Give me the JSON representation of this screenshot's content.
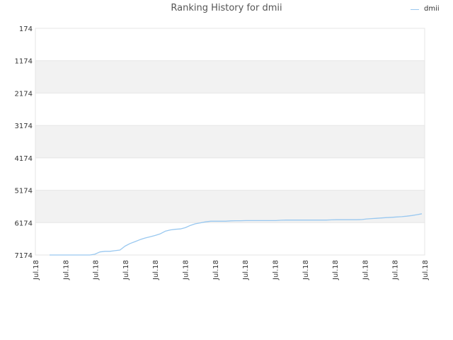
{
  "chart_data": {
    "type": "line",
    "title": "Ranking History for dmii",
    "xlabel": "",
    "ylabel": "",
    "ylim": [
      174,
      7174
    ],
    "y_inverted": true,
    "y_ticks": [
      "174",
      "1174",
      "2174",
      "3174",
      "4174",
      "5174",
      "6174",
      "7174"
    ],
    "x_ticks": [
      "Jul.18",
      "Jul.18",
      "Jul.18",
      "Jul.18",
      "Jul.18",
      "Jul.18",
      "Jul.18",
      "Jul.18",
      "Jul.18",
      "Jul.18",
      "Jul.18",
      "Jul.18",
      "Jul.18",
      "Jul.18"
    ],
    "grid": true,
    "legend_position": "top-right",
    "series": [
      {
        "name": "dmii",
        "color": "#99c8f0",
        "values": [
          7174,
          7174,
          7174,
          7174,
          7174,
          7174,
          7174,
          7174,
          7174,
          7150,
          7080,
          7060,
          7060,
          7040,
          7020,
          6900,
          6820,
          6760,
          6700,
          6650,
          6610,
          6570,
          6520,
          6440,
          6400,
          6380,
          6370,
          6330,
          6260,
          6210,
          6180,
          6150,
          6130,
          6130,
          6130,
          6130,
          6120,
          6115,
          6115,
          6110,
          6110,
          6110,
          6110,
          6110,
          6110,
          6110,
          6100,
          6095,
          6095,
          6095,
          6095,
          6095,
          6095,
          6095,
          6095,
          6095,
          6090,
          6085,
          6085,
          6085,
          6085,
          6085,
          6080,
          6060,
          6050,
          6040,
          6030,
          6020,
          6010,
          6000,
          5990,
          5975,
          5955,
          5930,
          5900
        ]
      }
    ]
  }
}
